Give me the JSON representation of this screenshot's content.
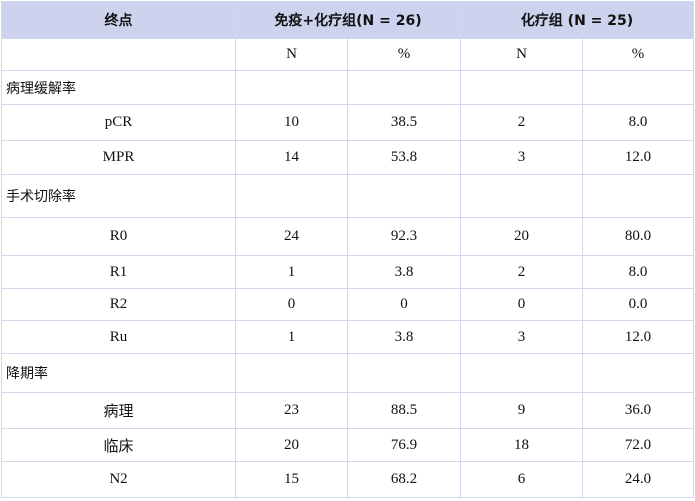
{
  "headers": [
    "终点",
    "免疫+化疗组(N = 26)",
    "化疗组  (N = 25)"
  ],
  "subheaders": [
    "",
    "N",
    "%",
    "N",
    "%"
  ],
  "rows": [
    {
      "type": "section",
      "label": "病理缓解率"
    },
    {
      "type": "data",
      "cells": [
        "pCR",
        "10",
        "38.5",
        "2",
        "8.0"
      ]
    },
    {
      "type": "data",
      "cells": [
        "MPR",
        "14",
        "53.8",
        "3",
        "12.0"
      ]
    },
    {
      "type": "section",
      "label": "手术切除率"
    },
    {
      "type": "data",
      "cells": [
        "R0",
        "24",
        "92.3",
        "20",
        "80.0"
      ]
    },
    {
      "type": "data",
      "cells": [
        "R1",
        "1",
        "3.8",
        "2",
        "8.0"
      ]
    },
    {
      "type": "data",
      "cells": [
        "R2",
        "0",
        "0",
        "0",
        "0.0"
      ]
    },
    {
      "type": "data",
      "cells": [
        "Ru",
        "1",
        "3.8",
        "3",
        "12.0"
      ]
    },
    {
      "type": "section",
      "label": "降期率"
    },
    {
      "type": "data",
      "cells": [
        "病理",
        "23",
        "88.5",
        "9",
        "36.0"
      ]
    },
    {
      "type": "data",
      "cells": [
        "临床",
        "20",
        "76.9",
        "18",
        "72.0"
      ]
    },
    {
      "type": "data",
      "cells": [
        "N2",
        "15",
        "68.2",
        "6",
        "24.0"
      ]
    }
  ]
}
